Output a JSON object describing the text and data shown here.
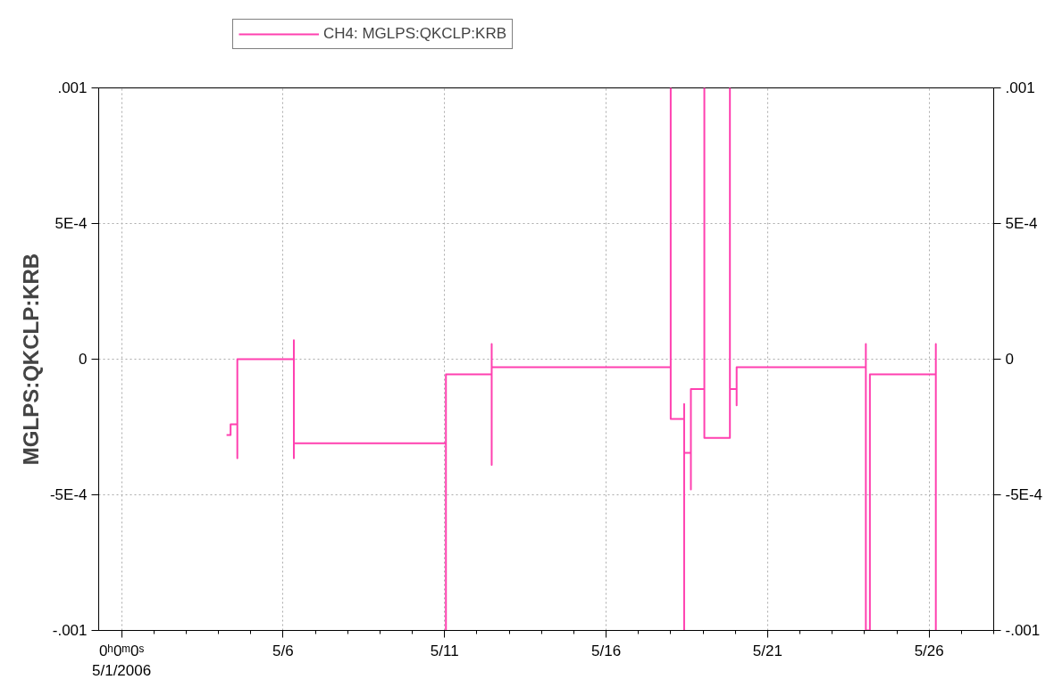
{
  "chart_data": {
    "type": "line",
    "ylabel": "MGLPS:QKCLP:KRB",
    "legend": "top left",
    "grid": true,
    "line_style": "solid",
    "marker": "none",
    "xlim": [
      "2006-04-30T07:00",
      "2006-05-28T00:00"
    ],
    "xticks": [
      {
        "value": "2006-05-01",
        "label": "0ʰ0ᵐ0ˢ\n5/1/2006"
      },
      {
        "value": "2006-05-06",
        "label": "5/6"
      },
      {
        "value": "2006-05-11",
        "label": "5/11"
      },
      {
        "value": "2006-05-16",
        "label": "5/16"
      },
      {
        "value": "2006-05-21",
        "label": "5/21"
      },
      {
        "value": "2006-05-26",
        "label": "5/26"
      }
    ],
    "ylim": [
      -0.001,
      0.001
    ],
    "yticks": [
      {
        "value": -0.001,
        "label": "-.001"
      },
      {
        "value": -0.0005,
        "label": "-5E-4"
      },
      {
        "value": 0,
        "label": "0"
      },
      {
        "value": 0.0005,
        "label": "5E-4"
      },
      {
        "value": 0.001,
        "label": ".001"
      }
    ],
    "y2lim": [
      -0.001,
      0.001
    ],
    "y2ticks": [
      {
        "value": -0.001,
        "label": "-.001"
      },
      {
        "value": -0.0005,
        "label": "-5E-4"
      },
      {
        "value": 0,
        "label": "0"
      },
      {
        "value": 0.0005,
        "label": "5E-4"
      },
      {
        "value": 0.001,
        "label": ".001"
      }
    ],
    "series": [
      {
        "name": "CH4: MGLPS:QKCLP:KRB",
        "color": "#ff40b0",
        "x": [
          "2006-05-04T06:00",
          "2006-05-04T09:00",
          "2006-05-04T09:00",
          "2006-05-04T14:00",
          "2006-05-04T14:00",
          "2006-05-04T14:00",
          "2006-05-06T08:00",
          "2006-05-06T08:00",
          "2006-05-06T08:00",
          "2006-05-06T08:00",
          "2006-05-11T01:00",
          "2006-05-11T01:00",
          "2006-05-11T01:00",
          "2006-05-12T11:00",
          "2006-05-12T11:00",
          "2006-05-12T11:00",
          "2006-05-12T11:00",
          "2006-05-18T00:00",
          "2006-05-18T00:00",
          "2006-05-18T00:00",
          "2006-05-18T10:00",
          "2006-05-18T10:00",
          "2006-05-18T10:00",
          "2006-05-18T10:00",
          "2006-05-18T15:00",
          "2006-05-18T15:00",
          "2006-05-18T15:00",
          "2006-05-19T01:00",
          "2006-05-19T01:00",
          "2006-05-19T01:00",
          "2006-05-19T20:00",
          "2006-05-19T20:00",
          "2006-05-19T20:00",
          "2006-05-20T01:00",
          "2006-05-20T01:00",
          "2006-05-20T01:00",
          "2006-05-24T01:00",
          "2006-05-24T01:00",
          "2006-05-24T01:00",
          "2006-05-24T04:00",
          "2006-05-24T04:00",
          "2006-05-26T05:00",
          "2006-05-26T05:00",
          "2006-05-26T05:00"
        ],
        "values": [
          -0.00028,
          -0.00028,
          -0.00024,
          -0.00024,
          -0.000365,
          0,
          0,
          7e-05,
          -0.000365,
          -0.00031,
          -0.00031,
          -0.001,
          -5.6e-05,
          -5.6e-05,
          5.6e-05,
          -0.00039,
          -3e-05,
          -3e-05,
          0.001,
          -0.00022,
          -0.00022,
          -0.000165,
          -0.001,
          -0.000345,
          -0.000345,
          -0.00048,
          -0.00011,
          -0.00011,
          0.001,
          -0.00029,
          -0.00029,
          0.001,
          -0.00011,
          -0.00011,
          -0.00017,
          -3e-05,
          -3e-05,
          5.6e-05,
          -0.001,
          -0.001,
          -5.6e-05,
          -5.6e-05,
          5.6e-05,
          -0.001
        ]
      }
    ]
  }
}
